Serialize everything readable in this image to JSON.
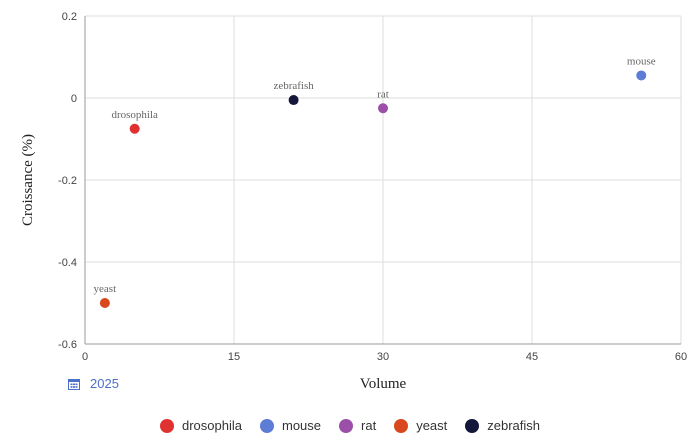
{
  "chart_data": {
    "type": "scatter",
    "xlabel": "Volume",
    "ylabel": "Croissance (%)",
    "xlim": [
      0,
      60
    ],
    "ylim": [
      -0.6,
      0.2
    ],
    "x_ticks": [
      0,
      15,
      30,
      45,
      60
    ],
    "y_ticks": [
      0.2,
      0,
      -0.2,
      -0.4,
      -0.6
    ],
    "grid": true,
    "legend_position": "bottom",
    "period_label": "2025",
    "series": [
      {
        "name": "drosophila",
        "color": "#e03131",
        "points": [
          {
            "x": 5,
            "y": -0.075,
            "label": "drosophila"
          }
        ]
      },
      {
        "name": "mouse",
        "color": "#5c7cd6",
        "points": [
          {
            "x": 56,
            "y": 0.055,
            "label": "mouse"
          }
        ]
      },
      {
        "name": "rat",
        "color": "#9c4fa8",
        "points": [
          {
            "x": 30,
            "y": -0.025,
            "label": "rat"
          }
        ]
      },
      {
        "name": "yeast",
        "color": "#d9481c",
        "points": [
          {
            "x": 2,
            "y": -0.5,
            "label": "yeast"
          }
        ]
      },
      {
        "name": "zebrafish",
        "color": "#14163a",
        "points": [
          {
            "x": 21,
            "y": -0.005,
            "label": "zebrafish"
          }
        ]
      }
    ]
  }
}
